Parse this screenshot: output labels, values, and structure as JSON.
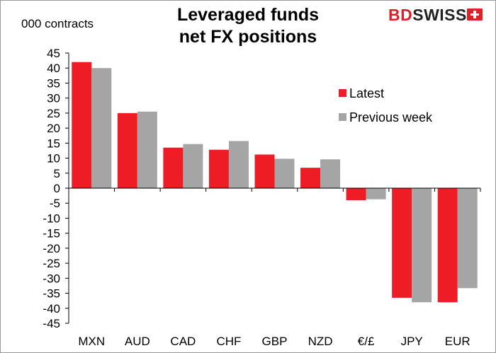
{
  "header": {
    "title_line1": "Leveraged funds",
    "title_line2": "net FX positions",
    "unit_label": "000 contracts"
  },
  "brand": {
    "part1": "BD",
    "part2": "SWISS"
  },
  "chart_data": {
    "type": "bar",
    "title": "Leveraged funds net FX positions",
    "ylabel": "000 contracts",
    "xlabel": "",
    "categories": [
      "MXN",
      "AUD",
      "CAD",
      "CHF",
      "GBP",
      "NZD",
      "€/£",
      "JPY",
      "EUR"
    ],
    "series": [
      {
        "name": "Latest",
        "color": "#ee1c25",
        "values": [
          42,
          25,
          13.5,
          12.8,
          11.2,
          6.8,
          -4,
          -36.5,
          -38
        ]
      },
      {
        "name": "Previous week",
        "color": "#a5a5a5",
        "values": [
          40,
          25.5,
          14.7,
          15.7,
          9.8,
          9.6,
          -3.7,
          -38,
          -33.3
        ]
      }
    ],
    "ylim": [
      -45,
      45
    ],
    "yticks": [
      45,
      40,
      35,
      30,
      25,
      20,
      15,
      10,
      5,
      0,
      -5,
      -10,
      -15,
      -20,
      -25,
      -30,
      -35,
      -40,
      -45
    ],
    "grid": false,
    "legend_position": "top-right"
  }
}
